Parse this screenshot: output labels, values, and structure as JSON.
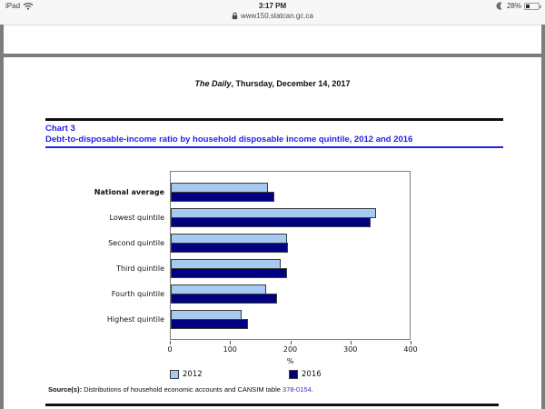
{
  "status_bar": {
    "carrier": "iPad",
    "time": "3:17 PM",
    "battery_percent": "28%",
    "url": "www150.statcan.gc.ca"
  },
  "document": {
    "masthead_italic": "The Daily",
    "masthead_rest": ", Thursday, December 14, 2017",
    "chart_label": "Chart 3",
    "chart_title": "Debt-to-disposable-income ratio by household disposable income quintile, 2012 and 2016",
    "source_prefix": "Source(s):",
    "source_text": " Distributions of household economic accounts and CANSIM table ",
    "source_link": "378-0154",
    "source_suffix": "."
  },
  "chart_data": {
    "type": "bar",
    "orientation": "horizontal",
    "title": "Debt-to-disposable-income ratio by household disposable income quintile, 2012 and 2016",
    "categories": [
      "National average",
      "Lowest quintile",
      "Second quintile",
      "Third quintile",
      "Fourth quintile",
      "Highest quintile"
    ],
    "series": [
      {
        "name": "2012",
        "color": "#A6CAF0",
        "values": [
          163,
          344,
          195,
          184,
          159,
          118
        ]
      },
      {
        "name": "2016",
        "color": "#000080",
        "values": [
          173,
          335,
          196,
          194,
          178,
          129
        ]
      }
    ],
    "xlabel": "%",
    "xlim": [
      0,
      400
    ],
    "xticks": [
      0,
      100,
      200,
      300,
      400
    ],
    "legend_position": "bottom",
    "grid": false,
    "emphasized_category_index": 0
  },
  "colors": {
    "title_blue": "#2222EE",
    "link_blue": "#3333CC",
    "bar_2012": "#A6CAF0",
    "bar_2016": "#000080",
    "frame_gray": "#7D7D7D"
  }
}
